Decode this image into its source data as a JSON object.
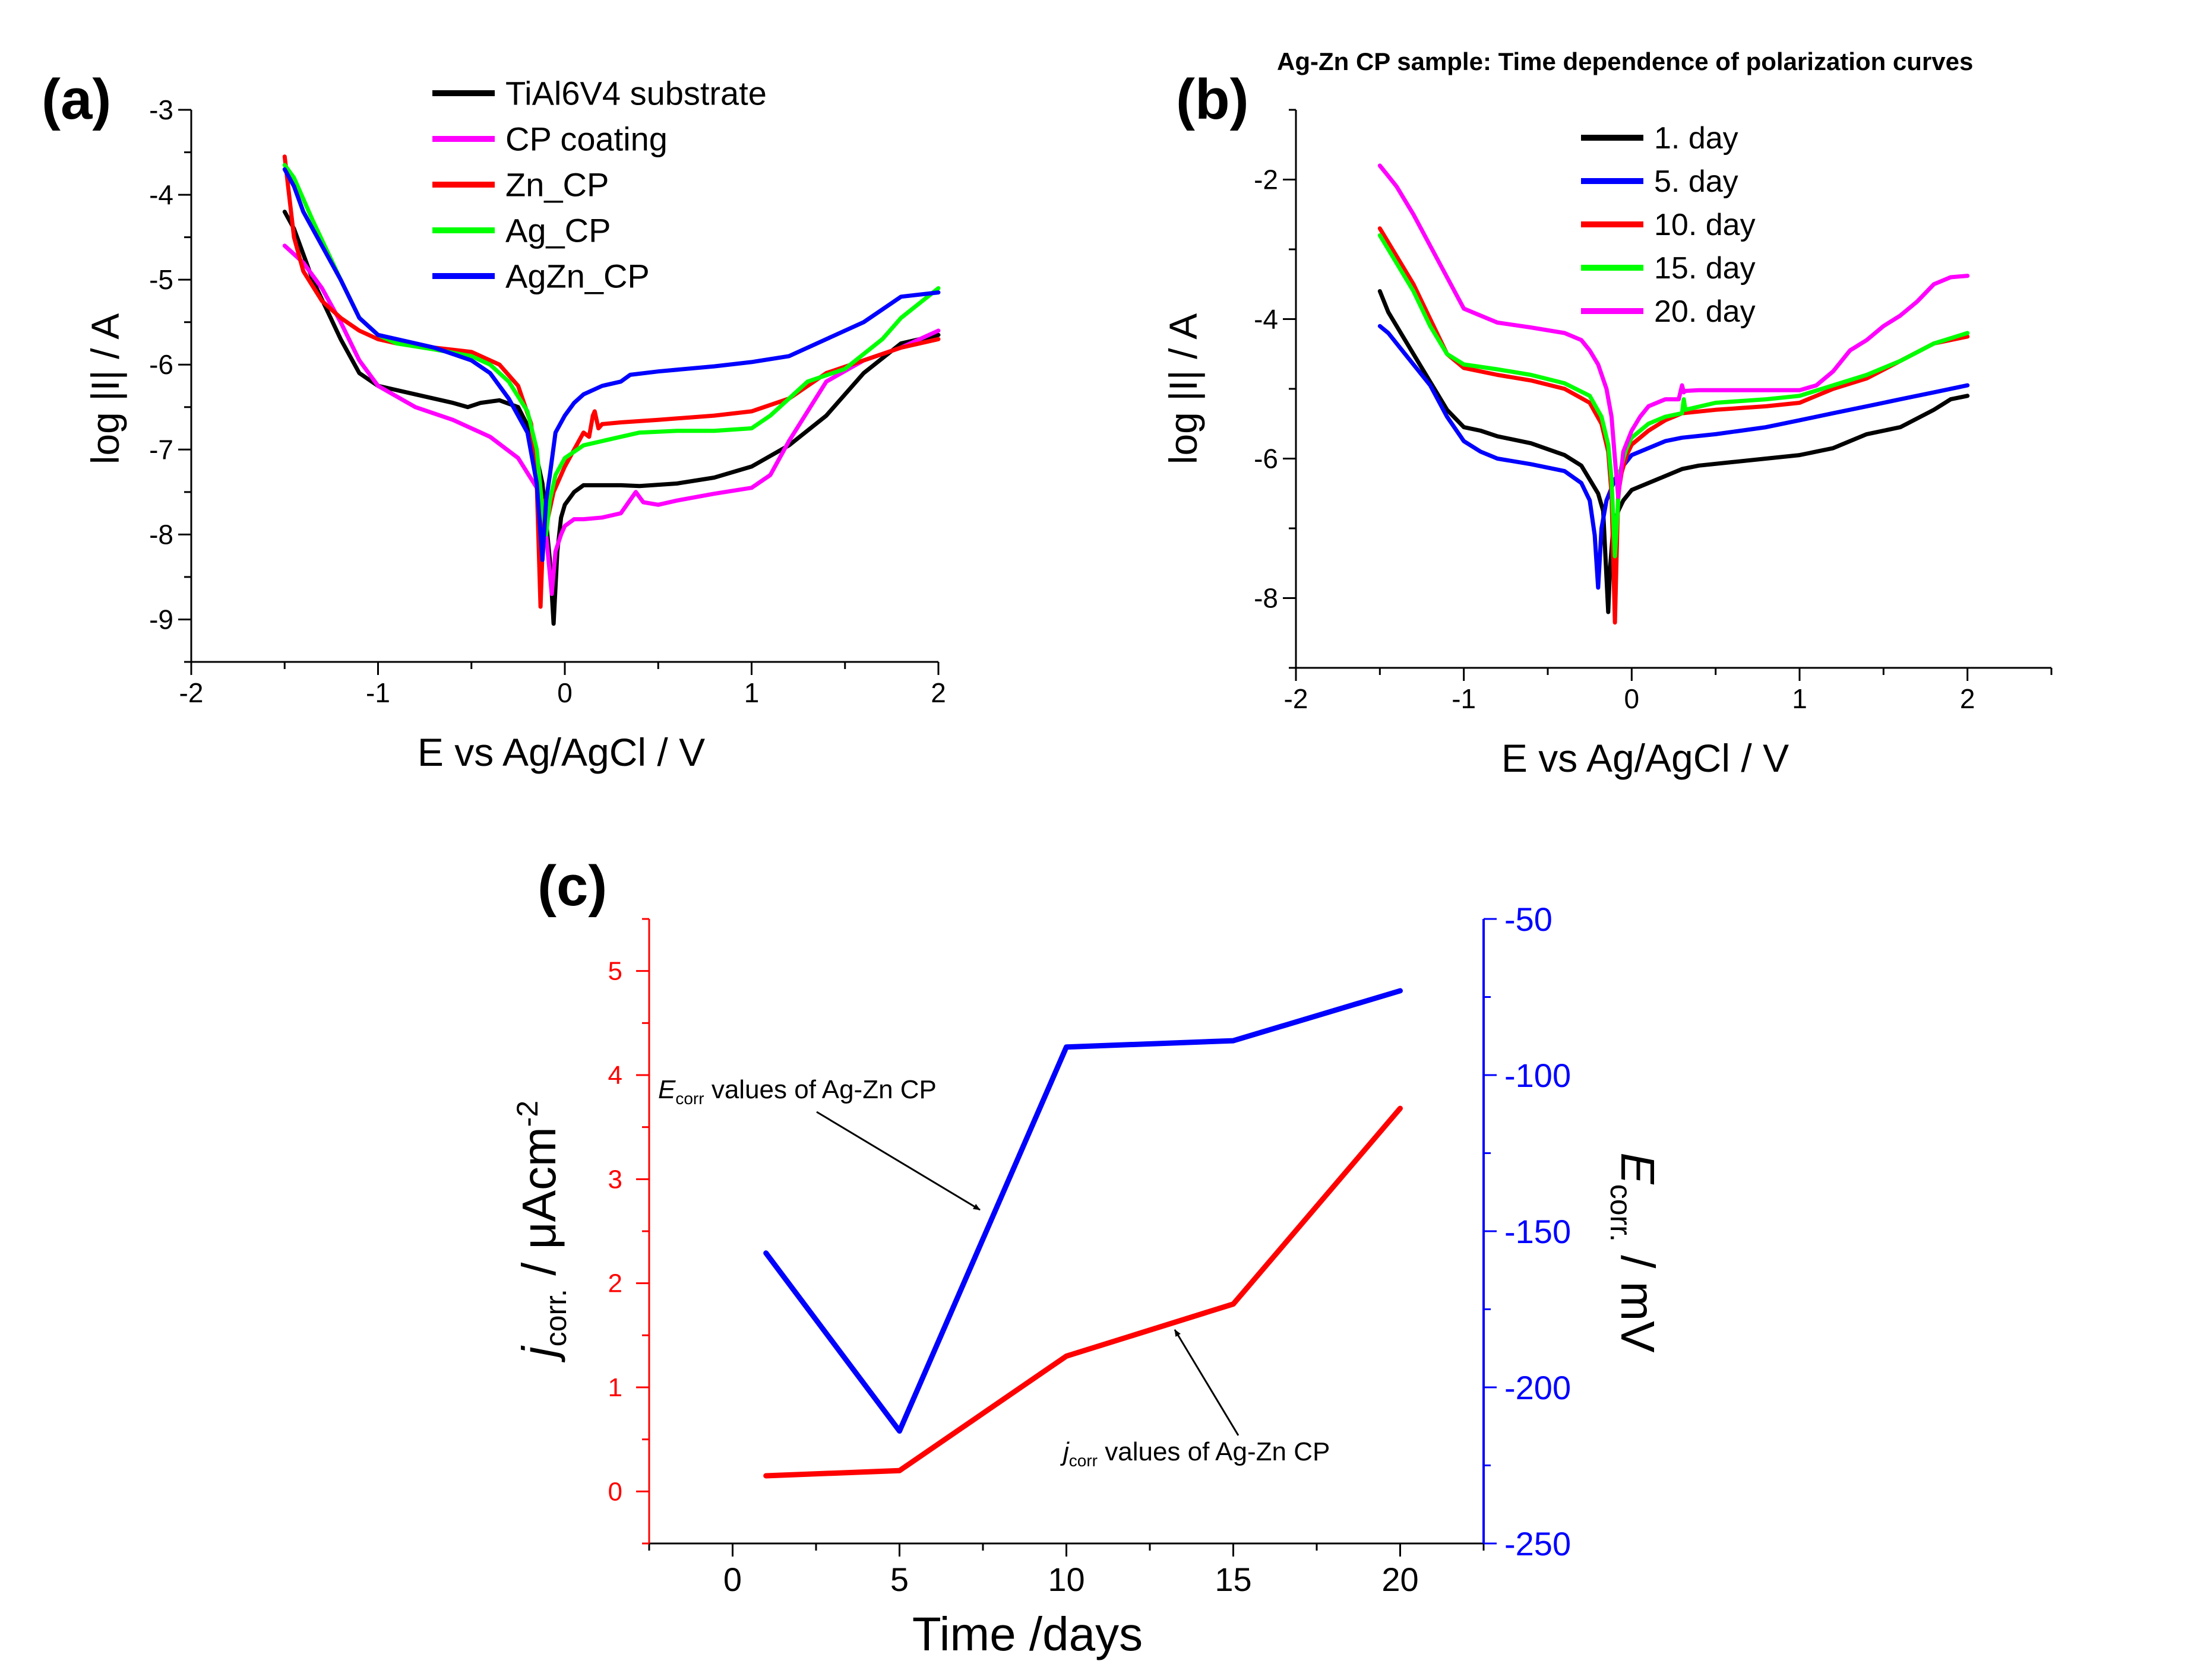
{
  "chart_data": [
    {
      "panel": "(a)",
      "type": "line",
      "xlabel": "E vs Ag/AgCl / V",
      "ylabel": "log |I| / A",
      "xlim": [
        -2,
        2
      ],
      "ylim": [
        -9.5,
        -3
      ],
      "xticks": [
        -2,
        -1,
        0,
        1,
        2
      ],
      "yticks": [
        -9,
        -8,
        -7,
        -6,
        -5,
        -4,
        -3
      ],
      "legend_position": "top-right",
      "series": [
        {
          "name": "TiAl6V4 substrate",
          "color": "#000000",
          "x": [
            -1.5,
            -1.45,
            -1.35,
            -1.2,
            -1.1,
            -1.0,
            -0.8,
            -0.6,
            -0.52,
            -0.45,
            -0.35,
            -0.25,
            -0.18,
            -0.12,
            -0.08,
            -0.06,
            -0.04,
            -0.02,
            0.0,
            0.05,
            0.1,
            0.2,
            0.3,
            0.4,
            0.6,
            0.8,
            1.0,
            1.2,
            1.4,
            1.6,
            1.8,
            2.0
          ],
          "y": [
            -4.2,
            -4.4,
            -5.0,
            -5.7,
            -6.1,
            -6.25,
            -6.35,
            -6.45,
            -6.5,
            -6.45,
            -6.42,
            -6.5,
            -6.8,
            -7.4,
            -8.3,
            -9.05,
            -8.2,
            -7.8,
            -7.65,
            -7.5,
            -7.42,
            -7.42,
            -7.42,
            -7.43,
            -7.4,
            -7.33,
            -7.2,
            -6.95,
            -6.6,
            -6.1,
            -5.75,
            -5.65
          ]
        },
        {
          "name": "CP coating",
          "color": "#ff00ff",
          "x": [
            -1.5,
            -1.4,
            -1.3,
            -1.2,
            -1.1,
            -1.0,
            -0.8,
            -0.6,
            -0.4,
            -0.25,
            -0.15,
            -0.1,
            -0.07,
            -0.05,
            -0.02,
            0.0,
            0.05,
            0.1,
            0.2,
            0.3,
            0.38,
            0.42,
            0.5,
            0.6,
            0.8,
            1.0,
            1.1,
            1.2,
            1.4,
            1.6,
            1.8,
            2.0
          ],
          "y": [
            -4.6,
            -4.8,
            -5.1,
            -5.5,
            -5.95,
            -6.25,
            -6.5,
            -6.65,
            -6.85,
            -7.1,
            -7.45,
            -8.0,
            -8.7,
            -8.2,
            -8.0,
            -7.9,
            -7.82,
            -7.82,
            -7.8,
            -7.75,
            -7.5,
            -7.62,
            -7.65,
            -7.6,
            -7.52,
            -7.45,
            -7.3,
            -6.9,
            -6.2,
            -5.95,
            -5.8,
            -5.6
          ]
        },
        {
          "name": "Zn_CP",
          "color": "#ff0000",
          "x": [
            -1.5,
            -1.45,
            -1.4,
            -1.3,
            -1.2,
            -1.1,
            -1.0,
            -0.9,
            -0.7,
            -0.5,
            -0.35,
            -0.25,
            -0.18,
            -0.15,
            -0.13,
            -0.11,
            -0.09,
            -0.06,
            -0.02,
            0.0,
            0.05,
            0.1,
            0.13,
            0.15,
            0.16,
            0.18,
            0.2,
            0.3,
            0.5,
            0.8,
            1.0,
            1.2,
            1.4,
            1.6,
            1.8,
            2.0
          ],
          "y": [
            -3.55,
            -4.5,
            -4.9,
            -5.25,
            -5.45,
            -5.6,
            -5.7,
            -5.75,
            -5.8,
            -5.85,
            -6.0,
            -6.25,
            -6.7,
            -7.4,
            -8.85,
            -7.6,
            -7.8,
            -7.5,
            -7.3,
            -7.2,
            -7.0,
            -6.8,
            -6.85,
            -6.6,
            -6.55,
            -6.75,
            -6.7,
            -6.68,
            -6.65,
            -6.6,
            -6.55,
            -6.4,
            -6.1,
            -5.95,
            -5.8,
            -5.7
          ]
        },
        {
          "name": "Ag_CP",
          "color": "#00ff00",
          "x": [
            -1.5,
            -1.45,
            -1.35,
            -1.2,
            -1.1,
            -1.0,
            -0.9,
            -0.7,
            -0.5,
            -0.4,
            -0.3,
            -0.2,
            -0.15,
            -0.12,
            -0.1,
            -0.08,
            -0.05,
            0.0,
            0.1,
            0.2,
            0.3,
            0.4,
            0.6,
            0.8,
            1.0,
            1.1,
            1.2,
            1.3,
            1.5,
            1.7,
            1.8,
            2.0
          ],
          "y": [
            -3.65,
            -3.8,
            -4.3,
            -5.0,
            -5.45,
            -5.65,
            -5.75,
            -5.82,
            -5.9,
            -6.0,
            -6.2,
            -6.55,
            -7.0,
            -7.7,
            -8.0,
            -7.6,
            -7.3,
            -7.1,
            -6.95,
            -6.9,
            -6.85,
            -6.8,
            -6.78,
            -6.78,
            -6.75,
            -6.6,
            -6.4,
            -6.2,
            -6.05,
            -5.7,
            -5.45,
            -5.1
          ]
        },
        {
          "name": "AgZn_CP",
          "color": "#0000ff",
          "x": [
            -1.5,
            -1.45,
            -1.4,
            -1.3,
            -1.2,
            -1.1,
            -1.0,
            -0.9,
            -0.7,
            -0.5,
            -0.4,
            -0.3,
            -0.2,
            -0.15,
            -0.12,
            -0.1,
            -0.08,
            -0.05,
            0.0,
            0.05,
            0.1,
            0.2,
            0.3,
            0.35,
            0.5,
            0.8,
            1.0,
            1.2,
            1.4,
            1.6,
            1.8,
            2.0
          ],
          "y": [
            -3.7,
            -3.9,
            -4.2,
            -4.6,
            -5.0,
            -5.45,
            -5.65,
            -5.7,
            -5.8,
            -5.95,
            -6.1,
            -6.4,
            -6.8,
            -7.4,
            -8.3,
            -7.6,
            -7.3,
            -6.8,
            -6.6,
            -6.45,
            -6.35,
            -6.25,
            -6.2,
            -6.12,
            -6.08,
            -6.02,
            -5.97,
            -5.9,
            -5.7,
            -5.5,
            -5.2,
            -5.15
          ]
        }
      ]
    },
    {
      "panel": "(b)",
      "type": "line",
      "title": "Ag-Zn CP sample: Time dependence of polarization curves",
      "xlabel": "E vs Ag/AgCl / V",
      "ylabel": "log |I| / A",
      "xlim": [
        -2,
        2.5
      ],
      "ylim": [
        -9,
        -1
      ],
      "xticks": [
        -2,
        -1,
        0,
        1,
        2
      ],
      "yticks": [
        -8,
        -6,
        -4,
        -2
      ],
      "legend_position": "top-left",
      "series": [
        {
          "name": "1. day",
          "color": "#000000",
          "x": [
            -1.5,
            -1.45,
            -1.35,
            -1.2,
            -1.1,
            -1.0,
            -0.9,
            -0.8,
            -0.6,
            -0.4,
            -0.3,
            -0.25,
            -0.2,
            -0.17,
            -0.14,
            -0.13,
            -0.11,
            -0.08,
            -0.05,
            0.0,
            0.1,
            0.2,
            0.3,
            0.4,
            0.6,
            0.8,
            1.0,
            1.2,
            1.4,
            1.6,
            1.8,
            1.9,
            2.0
          ],
          "y": [
            -3.6,
            -3.9,
            -4.3,
            -4.9,
            -5.3,
            -5.55,
            -5.6,
            -5.68,
            -5.78,
            -5.95,
            -6.1,
            -6.3,
            -6.5,
            -6.75,
            -8.2,
            -7.6,
            -7.0,
            -6.75,
            -6.6,
            -6.45,
            -6.35,
            -6.25,
            -6.15,
            -6.1,
            -6.05,
            -6.0,
            -5.95,
            -5.85,
            -5.65,
            -5.55,
            -5.3,
            -5.15,
            -5.1
          ]
        },
        {
          "name": "5. day",
          "color": "#0000ff",
          "x": [
            -1.5,
            -1.45,
            -1.35,
            -1.2,
            -1.1,
            -1.0,
            -0.9,
            -0.8,
            -0.6,
            -0.4,
            -0.3,
            -0.25,
            -0.22,
            -0.2,
            -0.18,
            -0.15,
            -0.1,
            -0.05,
            0.0,
            0.1,
            0.2,
            0.3,
            0.5,
            0.8,
            1.0,
            1.2,
            1.4,
            1.6,
            1.8,
            2.0
          ],
          "y": [
            -4.1,
            -4.2,
            -4.5,
            -4.95,
            -5.4,
            -5.75,
            -5.9,
            -6.0,
            -6.08,
            -6.18,
            -6.35,
            -6.6,
            -7.1,
            -7.85,
            -7.0,
            -6.6,
            -6.3,
            -6.1,
            -5.95,
            -5.85,
            -5.75,
            -5.7,
            -5.65,
            -5.55,
            -5.45,
            -5.35,
            -5.25,
            -5.15,
            -5.05,
            -4.95
          ]
        },
        {
          "name": "10. day",
          "color": "#ff0000",
          "x": [
            -1.5,
            -1.45,
            -1.3,
            -1.2,
            -1.1,
            -1.0,
            -0.8,
            -0.6,
            -0.4,
            -0.25,
            -0.18,
            -0.14,
            -0.12,
            -0.1,
            -0.09,
            -0.08,
            -0.06,
            -0.03,
            0.0,
            0.1,
            0.2,
            0.3,
            0.5,
            0.8,
            1.0,
            1.2,
            1.4,
            1.6,
            1.8,
            2.0
          ],
          "y": [
            -2.7,
            -2.9,
            -3.5,
            -4.0,
            -4.5,
            -4.7,
            -4.8,
            -4.88,
            -5.0,
            -5.2,
            -5.5,
            -5.9,
            -6.5,
            -8.35,
            -7.4,
            -6.5,
            -6.2,
            -5.95,
            -5.8,
            -5.6,
            -5.45,
            -5.35,
            -5.3,
            -5.25,
            -5.2,
            -5.0,
            -4.85,
            -4.6,
            -4.35,
            -4.25
          ]
        },
        {
          "name": "15. day",
          "color": "#00ff00",
          "x": [
            -1.5,
            -1.45,
            -1.3,
            -1.2,
            -1.1,
            -1.0,
            -0.8,
            -0.6,
            -0.4,
            -0.25,
            -0.18,
            -0.14,
            -0.12,
            -0.1,
            -0.08,
            -0.07,
            -0.05,
            -0.03,
            0.0,
            0.1,
            0.2,
            0.3,
            0.31,
            0.32,
            0.5,
            0.8,
            1.0,
            1.2,
            1.4,
            1.6,
            1.8,
            2.0
          ],
          "y": [
            -2.8,
            -3.0,
            -3.6,
            -4.1,
            -4.5,
            -4.65,
            -4.72,
            -4.8,
            -4.92,
            -5.1,
            -5.4,
            -5.8,
            -6.3,
            -7.4,
            -6.6,
            -6.2,
            -6.0,
            -5.85,
            -5.7,
            -5.5,
            -5.4,
            -5.35,
            -5.15,
            -5.3,
            -5.2,
            -5.15,
            -5.1,
            -4.95,
            -4.8,
            -4.6,
            -4.35,
            -4.2
          ]
        },
        {
          "name": "20. day",
          "color": "#ff00ff",
          "x": [
            -1.5,
            -1.45,
            -1.4,
            -1.3,
            -1.2,
            -1.1,
            -1.0,
            -0.9,
            -0.8,
            -0.6,
            -0.4,
            -0.3,
            -0.25,
            -0.2,
            -0.15,
            -0.12,
            -0.1,
            -0.08,
            -0.05,
            0.0,
            0.05,
            0.1,
            0.2,
            0.28,
            0.3,
            0.31,
            0.32,
            0.4,
            0.6,
            0.8,
            1.0,
            1.1,
            1.2,
            1.3,
            1.4,
            1.5,
            1.6,
            1.7,
            1.8,
            1.9,
            2.0
          ],
          "y": [
            -1.8,
            -1.95,
            -2.1,
            -2.5,
            -2.95,
            -3.4,
            -3.85,
            -3.95,
            -4.05,
            -4.12,
            -4.2,
            -4.3,
            -4.45,
            -4.65,
            -5.0,
            -5.4,
            -6.0,
            -6.55,
            -5.9,
            -5.6,
            -5.4,
            -5.25,
            -5.15,
            -5.15,
            -4.95,
            -5.05,
            -5.03,
            -5.02,
            -5.02,
            -5.02,
            -5.02,
            -4.95,
            -4.75,
            -4.45,
            -4.3,
            -4.1,
            -3.95,
            -3.75,
            -3.5,
            -3.4,
            -3.38
          ]
        }
      ]
    },
    {
      "panel": "(c)",
      "type": "line",
      "xlabel": "Time /days",
      "ylabel_left": "j_corr. / μAcm^-2",
      "ylabel_right": "E_corr. / mV",
      "xlim": [
        -2.5,
        22.5
      ],
      "ylim_left": [
        -0.5,
        5.5
      ],
      "ylim_right": [
        -250,
        -50
      ],
      "xticks": [
        0,
        5,
        10,
        15,
        20
      ],
      "yticks_left": [
        0,
        1,
        2,
        3,
        4,
        5
      ],
      "yticks_right": [
        -50,
        -100,
        -150,
        -200,
        -250
      ],
      "series": [
        {
          "name": "jcorr values of Ag-Zn CP",
          "axis": "left",
          "color": "#ff0000",
          "x": [
            1,
            5,
            10,
            15,
            20
          ],
          "y": [
            0.15,
            0.2,
            1.3,
            1.8,
            3.68
          ]
        },
        {
          "name": "Ecorr values of Ag-Zn CP",
          "axis": "right",
          "color": "#0000ff",
          "x": [
            1,
            5,
            10,
            15,
            20
          ],
          "y": [
            -157,
            -214,
            -91,
            -89,
            -73
          ]
        }
      ],
      "annotations": [
        {
          "main": "E",
          "sub": "corr",
          "rest": " values of Ag-Zn CP"
        },
        {
          "main": "j",
          "sub": "corr",
          "rest": " values of Ag-Zn CP"
        }
      ]
    }
  ],
  "labels": {
    "a": {
      "panel": "(a)",
      "ylab": "log |I| / A",
      "xlab": "E vs Ag/AgCl / V"
    },
    "b": {
      "panel": "(b)",
      "ylab": "log |I| / A",
      "xlab": "E vs Ag/AgCl / V",
      "title": "Ag-Zn CP sample: Time dependence of polarization curves"
    },
    "c": {
      "panel": "(c)",
      "xlab": "Time /days",
      "yl_main": "j",
      "yl_sub": "corr.",
      "yl_rest": " / μAcm",
      "yl_sup": "-2",
      "yr_main": "E",
      "yr_sub": "corr.",
      "yr_rest": " / mV"
    }
  },
  "colors": {
    "axis": "#000000",
    "jcorr": "#ff0000",
    "ecorr": "#0000ff"
  }
}
